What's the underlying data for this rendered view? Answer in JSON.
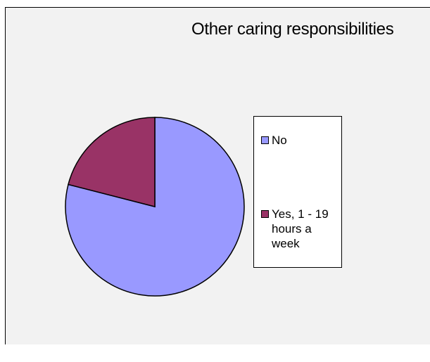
{
  "chart_data": {
    "type": "pie",
    "title": "Other caring responsibilities",
    "categories": [
      "No",
      "Yes, 1 - 19 hours a week"
    ],
    "values": [
      79,
      21
    ],
    "colors": [
      "#9999ff",
      "#993366"
    ],
    "legend_position": "right",
    "legend_labels": {
      "no": "No",
      "yes_1_19": "Yes, 1 - 19 hours a week"
    }
  }
}
